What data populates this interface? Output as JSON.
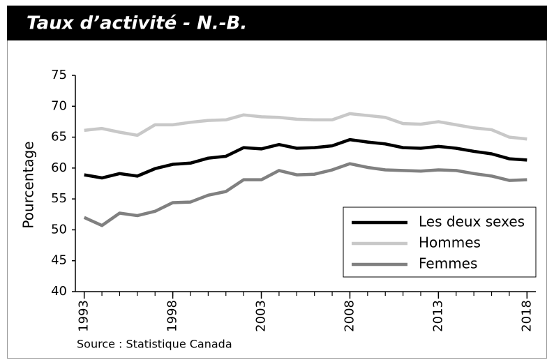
{
  "chart_data": {
    "type": "line",
    "title": "Taux d’activité - N.-B.",
    "y_label": "Pourcentage",
    "source": "Source : Statistique Canada",
    "x": [
      1993,
      1994,
      1995,
      1996,
      1997,
      1998,
      1999,
      2000,
      2001,
      2002,
      2003,
      2004,
      2005,
      2006,
      2007,
      2008,
      2009,
      2010,
      2011,
      2012,
      2013,
      2014,
      2015,
      2016,
      2017,
      2018
    ],
    "series": [
      {
        "name": "Les deux sexes",
        "color": "#000000",
        "values": [
          58.9,
          58.4,
          59.1,
          58.7,
          59.9,
          60.6,
          60.8,
          61.6,
          61.9,
          63.3,
          63.1,
          63.8,
          63.2,
          63.3,
          63.6,
          64.6,
          64.2,
          63.9,
          63.3,
          63.2,
          63.5,
          63.2,
          62.7,
          62.3,
          61.5,
          61.3
        ]
      },
      {
        "name": "Hommes",
        "color": "#c8c8c8",
        "values": [
          66.1,
          66.4,
          65.8,
          65.3,
          67.0,
          67.0,
          67.4,
          67.7,
          67.8,
          68.6,
          68.3,
          68.2,
          67.9,
          67.8,
          67.8,
          68.8,
          68.5,
          68.2,
          67.2,
          67.1,
          67.5,
          67.0,
          66.5,
          66.2,
          65.0,
          64.7
        ]
      },
      {
        "name": "Femmes",
        "color": "#808080",
        "values": [
          52.0,
          50.7,
          52.7,
          52.3,
          53.0,
          54.4,
          54.5,
          55.6,
          56.2,
          58.1,
          58.1,
          59.6,
          58.9,
          59.0,
          59.7,
          60.7,
          60.1,
          59.7,
          59.6,
          59.5,
          59.7,
          59.6,
          59.1,
          58.7,
          58.0,
          58.1
        ]
      }
    ],
    "xlim": [
      1992.5,
      2018.5
    ],
    "xticks": [
      1993,
      1998,
      2003,
      2008,
      2013,
      2018
    ],
    "ylim": [
      40,
      75
    ],
    "yticks": [
      40,
      45,
      50,
      55,
      60,
      65,
      70,
      75
    ],
    "legend": "lower right"
  }
}
